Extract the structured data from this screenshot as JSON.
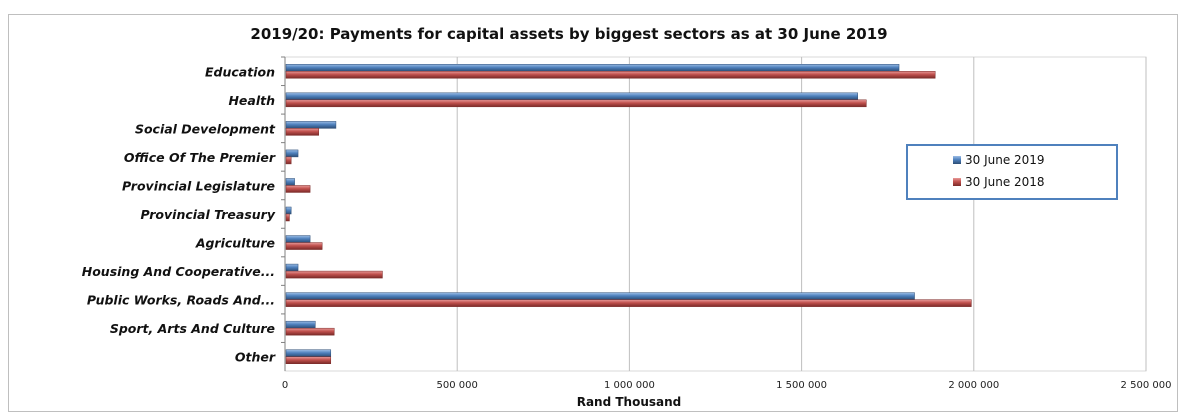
{
  "chart_data": {
    "type": "bar",
    "orientation": "horizontal",
    "title": "2019/20: Payments for capital assets by biggest sectors as at 30 June 2019",
    "xlabel": "Rand Thousand",
    "ylabel": "",
    "xlim": [
      0,
      2500000
    ],
    "xticks": [
      0,
      500000,
      1000000,
      1500000,
      2000000,
      2500000
    ],
    "xtick_labels": [
      "0",
      "500 000",
      "1 000 000",
      "1 500 000",
      "2 000 000",
      "2 500 000"
    ],
    "grid": true,
    "legend_position": "right",
    "categories": [
      "Education",
      "Health",
      "Social Development",
      "Office Of The Premier",
      "Provincial Legislature",
      "Provincial Treasury",
      "Agriculture",
      "Housing And Cooperative...",
      "Public Works, Roads And...",
      "Sport, Arts And Culture",
      "Other"
    ],
    "series": [
      {
        "name": "30 June 2019",
        "color": "#4f81bd",
        "values": [
          1780000,
          1660000,
          145000,
          35000,
          25000,
          15000,
          70000,
          35000,
          1825000,
          85000,
          130000
        ]
      },
      {
        "name": "30 June 2018",
        "color": "#c0504d",
        "values": [
          1885000,
          1685000,
          95000,
          15000,
          70000,
          10000,
          105000,
          280000,
          1990000,
          140000,
          130000
        ]
      }
    ]
  }
}
